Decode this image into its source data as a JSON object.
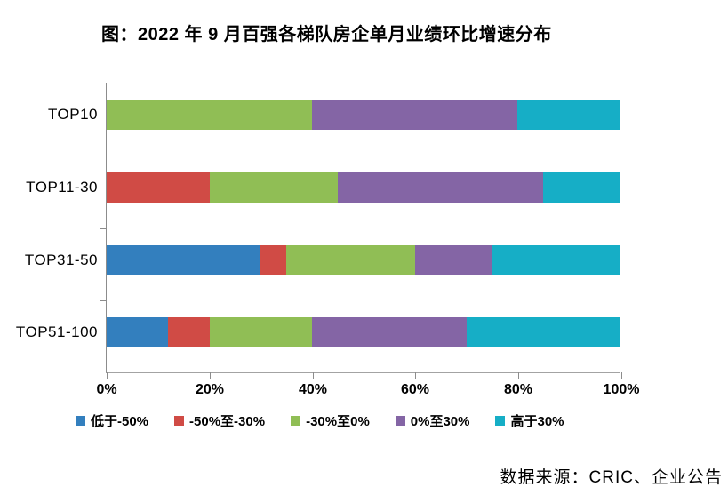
{
  "page": {
    "background": "#FFFFFF",
    "text_color": "#000000",
    "axis_color": "#8C8C8C"
  },
  "chart_data": {
    "type": "bar",
    "orientation": "horizontal",
    "stacked": true,
    "title": "图：2022 年 9 月百强各梯队房企单月业绩环比增速分布",
    "categories": [
      "TOP10",
      "TOP11-30",
      "TOP31-50",
      "TOP51-100"
    ],
    "series": [
      {
        "name": "低于-50%",
        "color": "#337FBE",
        "values": [
          0,
          0,
          30,
          12
        ]
      },
      {
        "name": "-50%至-30%",
        "color": "#D04B45",
        "values": [
          0,
          20,
          5,
          8
        ]
      },
      {
        "name": "-30%至0%",
        "color": "#90BE55",
        "values": [
          40,
          25,
          25,
          20
        ]
      },
      {
        "name": "0%至30%",
        "color": "#8465A5",
        "values": [
          40,
          40,
          15,
          30
        ]
      },
      {
        "name": "高于30%",
        "color": "#16AEC6",
        "values": [
          20,
          15,
          25,
          30
        ]
      }
    ],
    "xlabel": "",
    "ylabel": "",
    "x_axis": {
      "min": 0,
      "max": 100,
      "tick_step": 20,
      "tick_labels": [
        "0%",
        "20%",
        "40%",
        "60%",
        "80%",
        "100%"
      ]
    },
    "grid": false,
    "legend_position": "bottom",
    "source": "数据来源：CRIC、企业公告"
  }
}
